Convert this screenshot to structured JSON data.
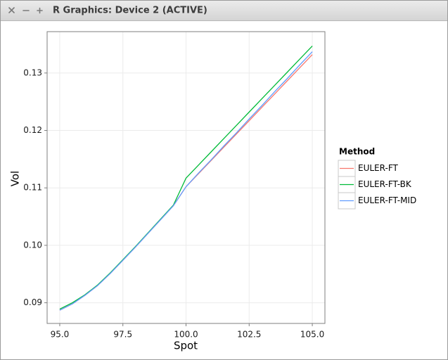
{
  "window": {
    "title": "R Graphics: Device 2 (ACTIVE)"
  },
  "chart_data": {
    "type": "line",
    "x_label": "Spot",
    "y_label": "Vol",
    "legend_title": "Method",
    "legend_position": "right",
    "grid": true,
    "x": [
      95,
      95.5,
      96,
      96.5,
      97,
      97.5,
      98,
      98.5,
      99,
      99.5,
      100,
      100.5,
      101,
      101.5,
      102,
      102.5,
      103,
      103.5,
      104,
      104.5,
      105
    ],
    "series": [
      {
        "name": "EULER-FT",
        "color": "#F8766D",
        "values": [
          0.0887,
          0.0898,
          0.0913,
          0.093,
          0.0951,
          0.0974,
          0.0997,
          0.1021,
          0.1045,
          0.1069,
          0.1102,
          0.1125,
          0.1148,
          0.1171,
          0.1194,
          0.1217,
          0.124,
          0.1263,
          0.1286,
          0.1309,
          0.1332
        ]
      },
      {
        "name": "EULER-FT-BK",
        "color": "#00BA38",
        "values": [
          0.0889,
          0.09,
          0.0914,
          0.0931,
          0.0952,
          0.0975,
          0.0998,
          0.1022,
          0.1046,
          0.107,
          0.1117,
          0.114,
          0.1163,
          0.1186,
          0.1209,
          0.1232,
          0.1255,
          0.1278,
          0.1301,
          0.1324,
          0.1347
        ]
      },
      {
        "name": "EULER-FT-MID",
        "color": "#619CFF",
        "values": [
          0.0887,
          0.0898,
          0.0913,
          0.093,
          0.0951,
          0.0974,
          0.0997,
          0.1021,
          0.1045,
          0.1069,
          0.1102,
          0.1126,
          0.1149,
          0.1173,
          0.1196,
          0.122,
          0.1243,
          0.1267,
          0.129,
          0.1314,
          0.1337
        ]
      }
    ],
    "xlim": [
      94.5,
      105.5
    ],
    "ylim": [
      0.0864,
      0.1372
    ],
    "xticks": [
      {
        "value": 95,
        "label": "95.0"
      },
      97.5,
      {
        "value": 100,
        "label": "100.0"
      },
      102.5,
      {
        "value": 105,
        "label": "105.0"
      }
    ],
    "yticks": [
      0.09,
      {
        "value": 0.1,
        "label": "0.10"
      },
      0.11,
      0.12,
      0.13
    ]
  }
}
